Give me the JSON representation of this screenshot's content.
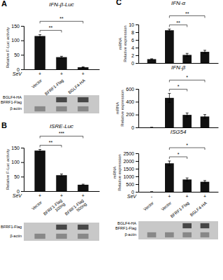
{
  "chart_data": [
    {
      "type": "bar",
      "panel": "A",
      "title": "IFN-β-Luc",
      "categories": [
        "Vector",
        "BFRF1-Flag",
        "BGLF4-HA"
      ],
      "values": [
        115,
        42,
        7
      ],
      "errors": [
        5,
        3,
        1.5
      ],
      "ylabel": "Relative F-Luc activity",
      "ylim": [
        0,
        150
      ],
      "yticks": [
        0,
        50,
        100,
        150
      ],
      "color": "#111111",
      "significance": [
        {
          "from": 0,
          "to": 1,
          "label": "**"
        },
        {
          "from": 0,
          "to": 2,
          "label": "**"
        }
      ],
      "row_label": "SeV",
      "row_labels": [
        "+",
        "+",
        "+"
      ],
      "blot_labels": [
        "BGLF4-HA\nBFRF1-Flag",
        "β-actin"
      ]
    },
    {
      "type": "bar",
      "panel": "B",
      "title": "ISRE-Luc",
      "categories": [
        "Vector",
        "BFRF1-Flag\n100ng",
        "BFRF1-Flag\n500ng"
      ],
      "values": [
        140,
        55,
        22
      ],
      "errors": [
        4,
        4,
        2
      ],
      "ylabel": "Relative F-Luc activity",
      "ylim": [
        0,
        150
      ],
      "yticks": [
        0,
        50,
        100,
        150
      ],
      "color": "#111111",
      "significance": [
        {
          "from": 0,
          "to": 1,
          "label": "**"
        },
        {
          "from": 0,
          "to": 2,
          "label": "***"
        }
      ],
      "row_label": "SeV",
      "row_labels": [
        "+",
        "+",
        "+"
      ],
      "blot_labels": [
        "BFRF1-Flag",
        "β-actin"
      ]
    },
    {
      "type": "bar",
      "panel": "C",
      "title": "IFN-α",
      "categories": [
        null,
        null,
        null,
        null
      ],
      "values": [
        1,
        8.5,
        2.1,
        2.9
      ],
      "errors": [
        0.1,
        0.3,
        0.4,
        0.4
      ],
      "ylabel": "mRNA\nRelative expression",
      "ylim": [
        0,
        10
      ],
      "yticks": [
        0,
        2,
        4,
        6,
        8,
        10
      ],
      "color": "#111111",
      "significance": [
        {
          "from": 1,
          "to": 2,
          "label": "**"
        },
        {
          "from": 1,
          "to": 3,
          "label": "**"
        }
      ]
    },
    {
      "type": "bar",
      "title": "IFN-β",
      "categories": [
        null,
        null,
        null,
        null
      ],
      "values": [
        0,
        460,
        195,
        170
      ],
      "errors": [
        0,
        70,
        30,
        30
      ],
      "ylabel": "mRNA\nRelative expression",
      "ylim": [
        0,
        600
      ],
      "yticks": [
        0,
        200,
        400,
        600
      ],
      "color": "#111111",
      "significance": [
        {
          "from": 1,
          "to": 2,
          "label": "*"
        },
        {
          "from": 1,
          "to": 3,
          "label": "*"
        }
      ]
    },
    {
      "type": "bar",
      "title": "ISG54",
      "categories": [
        "Vector",
        "Vector",
        "BFRF1-Flag",
        "BGLF4-HA"
      ],
      "values": [
        0,
        1850,
        800,
        650
      ],
      "errors": [
        0,
        150,
        100,
        80
      ],
      "ylabel": "mRNA\nRelative expression",
      "ylim": [
        0,
        2500
      ],
      "yticks": [
        0,
        500,
        1000,
        1500,
        2000,
        2500
      ],
      "color": "#111111",
      "significance": [
        {
          "from": 1,
          "to": 2,
          "label": "*"
        },
        {
          "from": 1,
          "to": 3,
          "label": "*"
        }
      ],
      "row_label": "SeV",
      "row_labels": [
        "-",
        "+",
        "+",
        "+"
      ],
      "blot_labels": [
        "BGLF4-HA\nBFRF1-Flag",
        "β-actin"
      ]
    }
  ]
}
